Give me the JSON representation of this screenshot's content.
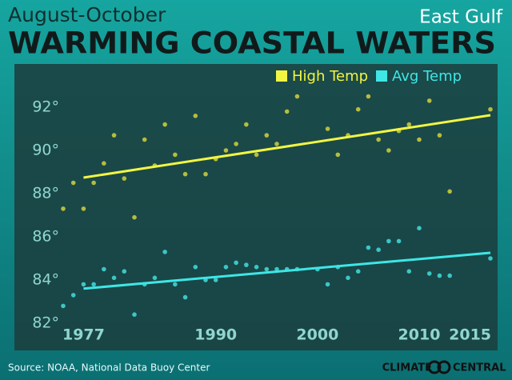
{
  "chart_data": {
    "type": "scatter",
    "subtitle": "August-October",
    "title": "WARMING COASTAL WATERS",
    "region": "East Gulf",
    "source": "Source: NOAA, National Data Buoy Center",
    "brand": "CLIMATE CENTRAL",
    "xlim": [
      1975,
      2017
    ],
    "xticks": [
      1977,
      1990,
      2000,
      2010,
      2015
    ],
    "ylim": [
      82,
      92.5
    ],
    "yticks": [
      {
        "value": 82,
        "label": "82°"
      },
      {
        "value": 84,
        "label": "84°"
      },
      {
        "value": 86,
        "label": "86°"
      },
      {
        "value": 88,
        "label": "88°"
      },
      {
        "value": 90,
        "label": "90°"
      },
      {
        "value": 92,
        "label": "92°"
      }
    ],
    "series": [
      {
        "name": "High Temp",
        "color": "#f2f542",
        "dot_color": "#b5bd3c",
        "x": [
          1975,
          1976,
          1977,
          1978,
          1979,
          1980,
          1981,
          1982,
          1983,
          1984,
          1985,
          1986,
          1987,
          1988,
          1989,
          1990,
          1991,
          1992,
          1993,
          1994,
          1995,
          1996,
          1997,
          1998,
          2001,
          2002,
          2003,
          2004,
          2005,
          2006,
          2007,
          2008,
          2009,
          2010,
          2011,
          2012,
          2013,
          2017
        ],
        "values": [
          87.3,
          88.5,
          87.3,
          88.5,
          89.4,
          90.7,
          88.7,
          86.9,
          90.5,
          89.3,
          91.2,
          89.8,
          88.9,
          91.6,
          88.9,
          89.6,
          90.0,
          90.3,
          91.2,
          89.8,
          90.7,
          90.3,
          91.8,
          92.5,
          91.0,
          89.8,
          90.7,
          91.9,
          92.5,
          90.5,
          90.0,
          90.9,
          91.2,
          90.5,
          92.3,
          90.7,
          88.1,
          91.9
        ],
        "trend": {
          "x": [
            1977,
            2017
          ],
          "values": [
            88.74,
            91.63
          ]
        }
      },
      {
        "name": "Avg Temp",
        "color": "#3ee6e6",
        "dot_color": "#3cc6c6",
        "x": [
          1975,
          1976,
          1977,
          1978,
          1979,
          1980,
          1981,
          1982,
          1983,
          1984,
          1985,
          1986,
          1987,
          1988,
          1989,
          1990,
          1991,
          1992,
          1993,
          1994,
          1995,
          1996,
          1997,
          1998,
          2000,
          2001,
          2002,
          2003,
          2004,
          2005,
          2006,
          2007,
          2008,
          2009,
          2010,
          2011,
          2012,
          2013,
          2017
        ],
        "values": [
          82.8,
          83.3,
          83.8,
          83.8,
          84.5,
          84.1,
          84.4,
          82.4,
          83.8,
          84.1,
          85.3,
          83.8,
          83.2,
          84.6,
          84.0,
          84.0,
          84.6,
          84.8,
          84.7,
          84.6,
          84.5,
          84.5,
          84.5,
          84.5,
          84.5,
          83.8,
          84.6,
          84.1,
          84.4,
          85.5,
          85.4,
          85.8,
          85.8,
          84.4,
          86.4,
          84.3,
          84.2,
          84.2,
          85.0
        ],
        "trend": {
          "x": [
            1977,
            2017
          ],
          "values": [
            83.6,
            85.26
          ]
        }
      }
    ]
  }
}
